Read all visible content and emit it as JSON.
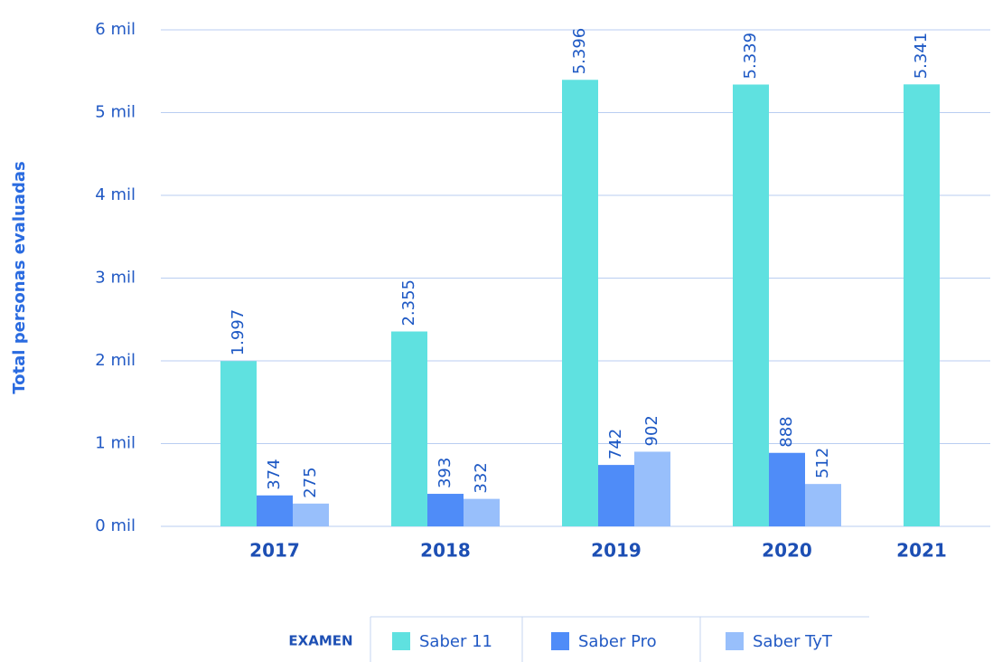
{
  "chart_data": {
    "type": "bar",
    "y_label": "Total personas evaluadas",
    "categories": [
      "2017",
      "2018",
      "2019",
      "2020",
      "2021"
    ],
    "series": [
      {
        "name": "Saber 11",
        "color": "#5fe1e0",
        "values": [
          1997,
          2355,
          5396,
          5339,
          5341
        ],
        "value_labels": [
          "1.997",
          "2.355",
          "5.396",
          "5.339",
          "5.341"
        ]
      },
      {
        "name": "Saber Pro",
        "color": "#4f8cf8",
        "values": [
          374,
          393,
          742,
          888,
          null
        ],
        "value_labels": [
          "374",
          "393",
          "742",
          "888",
          null
        ]
      },
      {
        "name": "Saber TyT",
        "color": "#98bffb",
        "values": [
          275,
          332,
          902,
          512,
          null
        ],
        "value_labels": [
          "275",
          "332",
          "902",
          "512",
          null
        ]
      }
    ],
    "ylim": [
      0,
      6000
    ],
    "yticks": [
      {
        "value": 0,
        "label": "0 mil"
      },
      {
        "value": 1000,
        "label": "1 mil"
      },
      {
        "value": 2000,
        "label": "2 mil"
      },
      {
        "value": 3000,
        "label": "3 mil"
      },
      {
        "value": 4000,
        "label": "4 mil"
      },
      {
        "value": 5000,
        "label": "5 mil"
      },
      {
        "value": 6000,
        "label": "6 mil"
      }
    ],
    "grid": true,
    "legend_title": "EXAMEN",
    "legend": "bottom"
  }
}
